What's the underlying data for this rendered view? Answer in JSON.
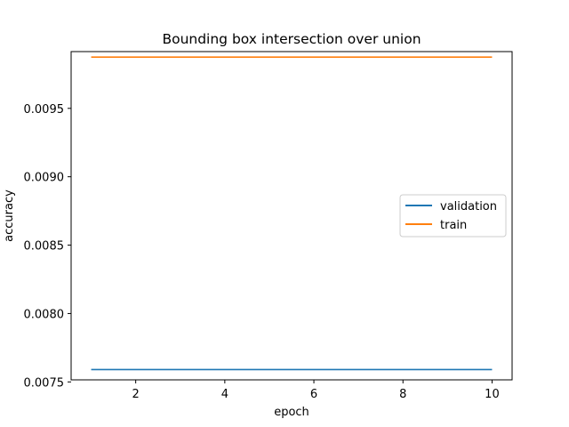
{
  "chart_data": {
    "type": "line",
    "title": "Bounding box intersection over union",
    "xlabel": "epoch",
    "ylabel": "accuracy",
    "xlim": [
      0.55,
      10.45
    ],
    "ylim": [
      0.007515,
      0.009915
    ],
    "xticks": [
      2,
      4,
      6,
      8,
      10
    ],
    "yticks": [
      0.0075,
      0.008,
      0.0085,
      0.009,
      0.0095
    ],
    "ytick_labels": [
      "0.0075",
      "0.0080",
      "0.0085",
      "0.0090",
      "0.0095"
    ],
    "grid": false,
    "legend_position": "center-right",
    "x": [
      1,
      2,
      3,
      4,
      5,
      6,
      7,
      8,
      9,
      10
    ],
    "series": [
      {
        "name": "validation",
        "color": "#1f77b4",
        "values": [
          0.00759,
          0.00759,
          0.00759,
          0.00759,
          0.00759,
          0.00759,
          0.00759,
          0.00759,
          0.00759,
          0.00759
        ]
      },
      {
        "name": "train",
        "color": "#ff7f0e",
        "values": [
          0.009875,
          0.009875,
          0.009875,
          0.009875,
          0.009875,
          0.009875,
          0.009875,
          0.009875,
          0.009875,
          0.009875
        ]
      }
    ]
  }
}
